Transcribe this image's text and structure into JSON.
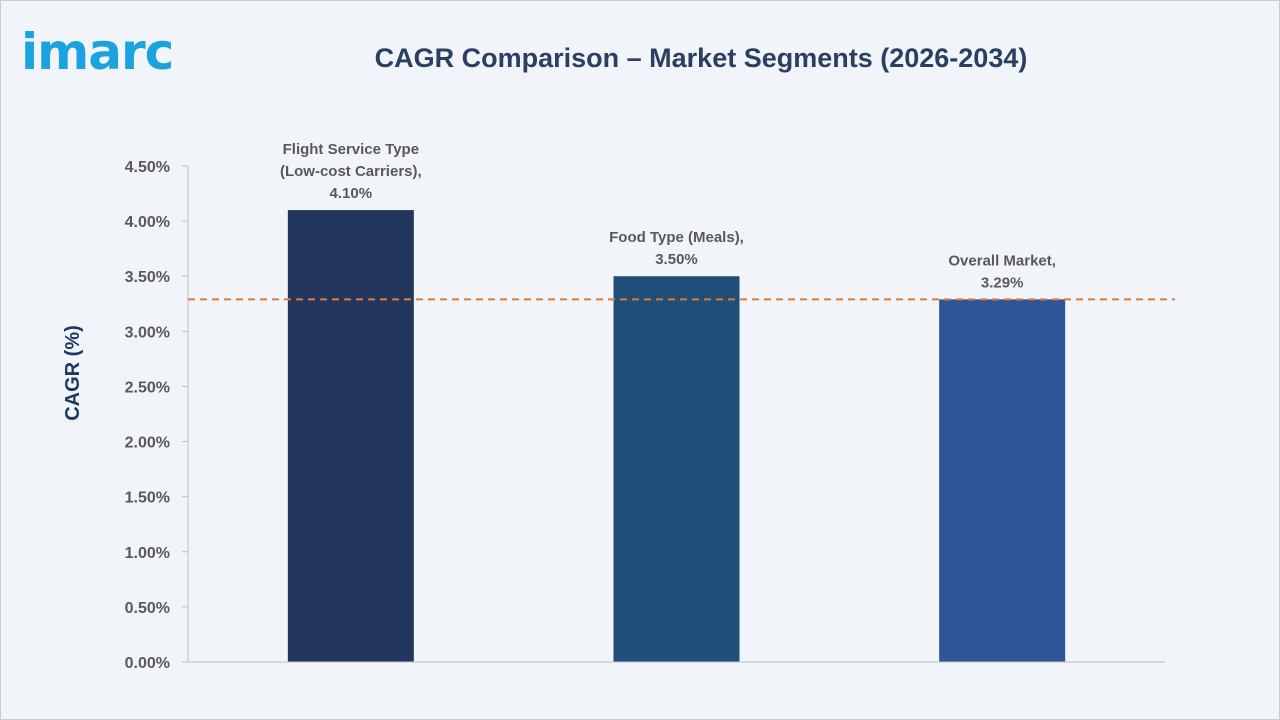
{
  "logo": {
    "text": "imarc"
  },
  "chart_data": {
    "type": "bar",
    "title": "CAGR Comparison – Market Segments (2026-2034)",
    "ylabel": "CAGR (%)",
    "xlabel": "",
    "ylim": [
      0,
      4.5
    ],
    "yticks": [
      "0.00%",
      "0.50%",
      "1.00%",
      "1.50%",
      "2.00%",
      "2.50%",
      "3.00%",
      "3.50%",
      "4.00%",
      "4.50%"
    ],
    "categories": [
      [
        "Flight Service Type",
        "(Low-cost Carriers),",
        "4.10%"
      ],
      [
        "Food Type (Meals),",
        "3.50%"
      ],
      [
        "Overall Market,",
        "3.29%"
      ]
    ],
    "values": [
      4.1,
      3.5,
      3.29
    ],
    "colors": [
      "#22365e",
      "#1f4e79",
      "#2f5597"
    ],
    "reference_line": {
      "value": 3.29,
      "color": "#e07b39",
      "style": "dashed"
    },
    "grid": false
  }
}
